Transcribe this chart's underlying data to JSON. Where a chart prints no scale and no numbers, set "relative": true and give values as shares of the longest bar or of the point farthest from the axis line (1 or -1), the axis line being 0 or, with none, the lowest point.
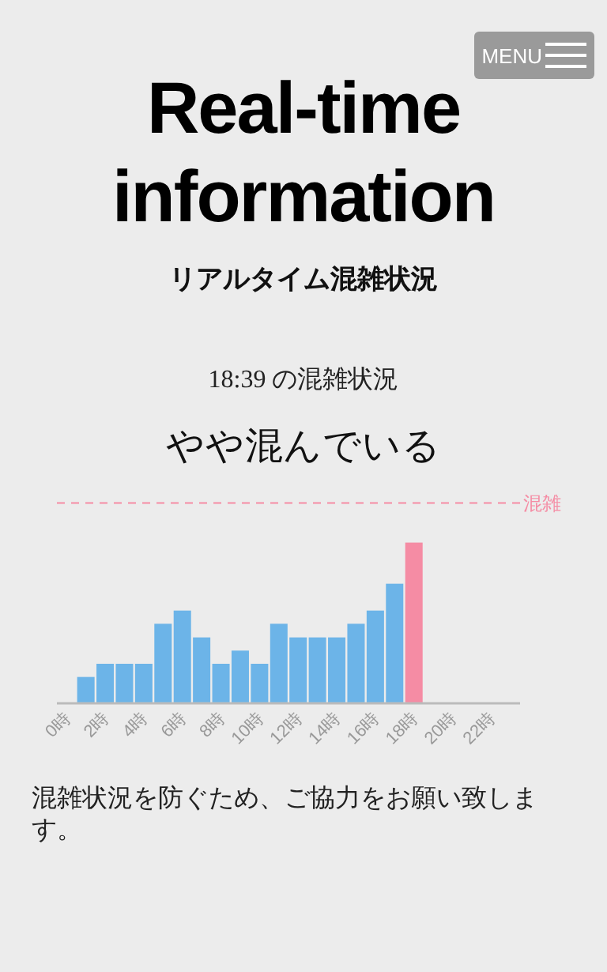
{
  "chart_data": {
    "type": "bar",
    "title": "Real-time information",
    "subtitle": "リアルタイム混雑状況",
    "categories": [
      "0時",
      null,
      "2時",
      null,
      "4時",
      null,
      "6時",
      null,
      "8時",
      null,
      "10時",
      null,
      "12時",
      null,
      "14時",
      null,
      "16時",
      null,
      "18時",
      null,
      "20時",
      null,
      "22時",
      null
    ],
    "values": [
      null,
      0.164,
      0.246,
      0.246,
      0.246,
      0.495,
      0.577,
      0.41,
      0.246,
      0.328,
      0.246,
      0.495,
      0.41,
      0.41,
      0.41,
      0.495,
      0.577,
      0.744,
      1,
      null,
      null,
      null,
      null,
      null
    ],
    "colors": [
      null,
      "#6cb4e8",
      "#6cb4e8",
      "#6cb4e8",
      "#6cb4e8",
      "#6cb4e8",
      "#6cb4e8",
      "#6cb4e8",
      "#6cb4e8",
      "#6cb4e8",
      "#6cb4e8",
      "#6cb4e8",
      "#6cb4e8",
      "#6cb4e8",
      "#6cb4e8",
      "#6cb4e8",
      "#6cb4e8",
      "#6cb4e8",
      "#f58ca4",
      null,
      null,
      null,
      null,
      null
    ],
    "relative": true,
    "ref_lines": [
      {
        "axis": "y",
        "value": 1.246,
        "label": "混雑",
        "color": "#f58ca4",
        "line_style": "dashed"
      }
    ],
    "annotations": [
      "MENU",
      "18:39 の混雑状況",
      "やや混んでいる",
      "混雑状況を防ぐため、ご協力をお願い致します。"
    ]
  }
}
